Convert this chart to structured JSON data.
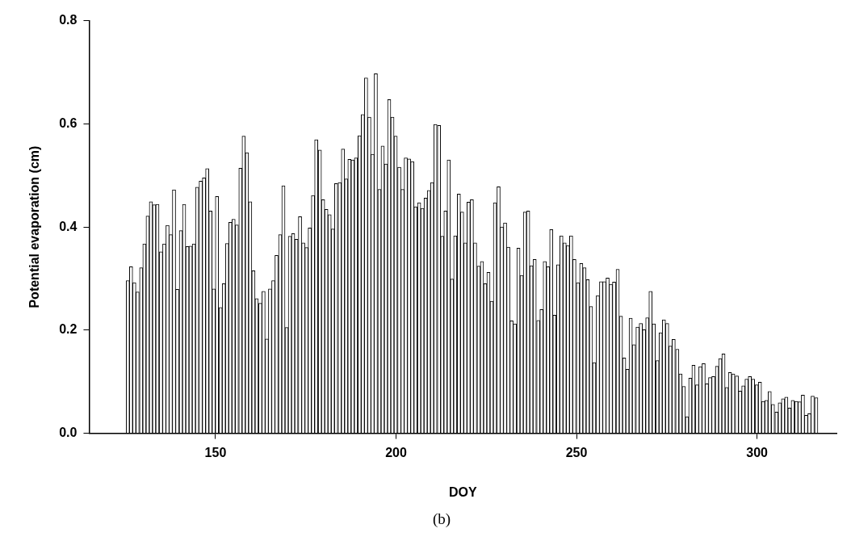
{
  "chart_data": {
    "type": "bar",
    "xlabel": "DOY",
    "ylabel": "Potential evaporation (cm)",
    "annotations": [
      "(b)"
    ],
    "color": "#ffffff",
    "xlim": [
      115,
      322
    ],
    "xticks": [
      150,
      200,
      250,
      300
    ],
    "ylim": [
      0,
      0.8
    ],
    "yticks": [
      {
        "value": 0,
        "label": "0.0"
      },
      {
        "value": 0.2,
        "label": "0.2"
      },
      {
        "value": 0.4,
        "label": "0.4"
      },
      {
        "value": 0.6,
        "label": "0.6"
      },
      {
        "value": 0.8,
        "label": "0.8"
      }
    ],
    "grid": false,
    "legend": false,
    "x": [
      125.7,
      126.6,
      127.5,
      128.4,
      129.4,
      130.3,
      131.2,
      132.1,
      133.0,
      133.9,
      134.9,
      135.8,
      136.7,
      137.6,
      138.5,
      139.4,
      140.4,
      141.3,
      142.2,
      143.1,
      144.0,
      144.9,
      145.9,
      146.8,
      147.7,
      148.6,
      149.5,
      150.4,
      151.4,
      152.3,
      153.2,
      154.1,
      155.0,
      155.9,
      156.9,
      157.8,
      158.7,
      159.6,
      160.5,
      161.4,
      162.4,
      163.3,
      164.2,
      165.1,
      166.0,
      166.9,
      167.9,
      168.8,
      169.7,
      170.6,
      171.5,
      172.4,
      173.4,
      174.3,
      175.2,
      176.1,
      177.0,
      177.9,
      178.9,
      179.8,
      180.7,
      181.6,
      182.5,
      183.4,
      184.4,
      185.3,
      186.2,
      187.1,
      188.0,
      188.9,
      189.9,
      190.8,
      191.7,
      192.6,
      193.5,
      194.4,
      195.4,
      196.3,
      197.2,
      198.1,
      199.0,
      199.9,
      200.9,
      201.8,
      202.7,
      203.6,
      204.5,
      205.4,
      206.4,
      207.3,
      208.2,
      209.1,
      210.0,
      210.9,
      211.9,
      212.8,
      213.7,
      214.6,
      215.5,
      216.4,
      217.4,
      218.3,
      219.2,
      220.1,
      221.0,
      221.9,
      222.9,
      223.8,
      224.7,
      225.6,
      226.5,
      227.4,
      228.4,
      229.3,
      230.2,
      231.1,
      232.0,
      232.9,
      233.9,
      234.8,
      235.7,
      236.6,
      237.5,
      238.4,
      239.4,
      240.3,
      241.2,
      242.1,
      243.0,
      243.9,
      244.9,
      245.8,
      246.7,
      247.6,
      248.5,
      249.4,
      250.4,
      251.3,
      252.2,
      253.1,
      254.0,
      254.9,
      255.9,
      256.8,
      257.7,
      258.6,
      259.5,
      260.4,
      261.4,
      262.3,
      263.2,
      264.1,
      265.0,
      265.9,
      266.9,
      267.8,
      268.7,
      269.6,
      270.5,
      271.4,
      272.4,
      273.3,
      274.2,
      275.1,
      276.0,
      276.9,
      277.9,
      278.8,
      279.7,
      280.6,
      281.5,
      282.4,
      283.4,
      284.3,
      285.2,
      286.1,
      287.0,
      287.9,
      288.9,
      289.8,
      290.7,
      291.6,
      292.5,
      293.4,
      294.4,
      295.3,
      296.2,
      297.1,
      298.0,
      298.9,
      299.9,
      300.8,
      301.7,
      302.6,
      303.5,
      304.4,
      305.4,
      306.3,
      307.2,
      308.1,
      309.0,
      309.9,
      310.9,
      311.8,
      312.7,
      313.6,
      314.5,
      315.4,
      316.4
    ],
    "values": [
      0.296,
      0.323,
      0.292,
      0.274,
      0.321,
      0.367,
      0.421,
      0.449,
      0.443,
      0.444,
      0.352,
      0.367,
      0.403,
      0.385,
      0.472,
      0.279,
      0.393,
      0.444,
      0.362,
      0.363,
      0.367,
      0.477,
      0.489,
      0.495,
      0.513,
      0.431,
      0.28,
      0.459,
      0.244,
      0.29,
      0.368,
      0.409,
      0.415,
      0.404,
      0.514,
      0.576,
      0.544,
      0.449,
      0.315,
      0.261,
      0.252,
      0.275,
      0.183,
      0.28,
      0.296,
      0.345,
      0.385,
      0.48,
      0.205,
      0.382,
      0.387,
      0.376,
      0.42,
      0.369,
      0.36,
      0.398,
      0.461,
      0.569,
      0.549,
      0.453,
      0.434,
      0.424,
      0.396,
      0.484,
      0.486,
      0.551,
      0.493,
      0.531,
      0.53,
      0.534,
      0.577,
      0.618,
      0.689,
      0.613,
      0.541,
      0.697,
      0.473,
      0.557,
      0.522,
      0.647,
      0.613,
      0.576,
      0.516,
      0.473,
      0.534,
      0.532,
      0.527,
      0.439,
      0.447,
      0.436,
      0.456,
      0.471,
      0.486,
      0.599,
      0.597,
      0.382,
      0.431,
      0.53,
      0.299,
      0.383,
      0.464,
      0.429,
      0.369,
      0.448,
      0.453,
      0.369,
      0.324,
      0.333,
      0.29,
      0.312,
      0.256,
      0.447,
      0.478,
      0.4,
      0.408,
      0.361,
      0.218,
      0.212,
      0.359,
      0.306,
      0.429,
      0.431,
      0.325,
      0.337,
      0.219,
      0.24,
      0.333,
      0.323,
      0.395,
      0.229,
      0.327,
      0.383,
      0.369,
      0.364,
      0.383,
      0.337,
      0.292,
      0.329,
      0.321,
      0.298,
      0.246,
      0.137,
      0.267,
      0.294,
      0.294,
      0.301,
      0.289,
      0.293,
      0.318,
      0.227,
      0.146,
      0.124,
      0.223,
      0.172,
      0.206,
      0.213,
      0.201,
      0.224,
      0.275,
      0.212,
      0.141,
      0.195,
      0.22,
      0.213,
      0.169,
      0.182,
      0.163,
      0.115,
      0.091,
      0.032,
      0.107,
      0.132,
      0.094,
      0.129,
      0.135,
      0.096,
      0.108,
      0.11,
      0.13,
      0.145,
      0.154,
      0.089,
      0.118,
      0.115,
      0.111,
      0.082,
      0.092,
      0.105,
      0.11,
      0.105,
      0.094,
      0.099,
      0.062,
      0.064,
      0.081,
      0.056,
      0.041,
      0.059,
      0.067,
      0.07,
      0.049,
      0.064,
      0.062,
      0.061,
      0.074,
      0.035,
      0.038,
      0.072,
      0.069
    ]
  }
}
